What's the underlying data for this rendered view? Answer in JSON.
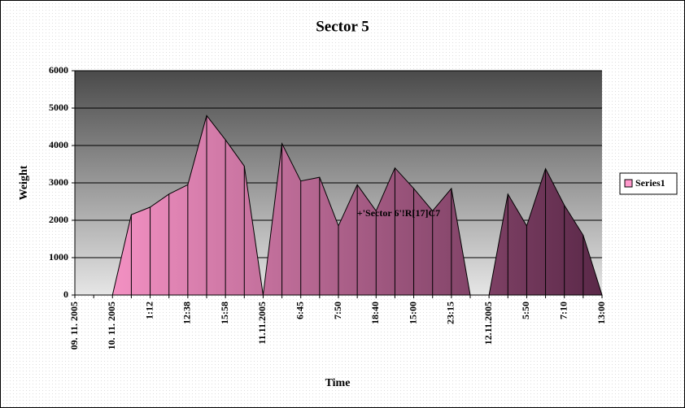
{
  "chart_data": {
    "type": "area",
    "title": "Sector 5",
    "x_label": "Time",
    "y_label": "Weight",
    "categories": [
      "09. 11. 2005",
      null,
      "10. 11. 2005",
      null,
      "1:12",
      null,
      "12:38",
      null,
      "15:58",
      null,
      "11.11.2005",
      null,
      "6:45",
      null,
      "7:50",
      null,
      "18:40",
      null,
      "15:00",
      null,
      "23:15",
      null,
      "12.11.2005",
      null,
      "5:50",
      null,
      "7:10",
      null,
      "13:00"
    ],
    "series": [
      {
        "name": "Series1",
        "color": "#ff99cc",
        "color_end": "#5a2848",
        "values": [
          0,
          0,
          0,
          2150,
          2350,
          2700,
          2950,
          4800,
          4150,
          3450,
          0,
          4050,
          3050,
          3150,
          1850,
          2950,
          2250,
          3400,
          2850,
          2250,
          2850,
          0,
          0,
          2700,
          1850,
          3380,
          2400,
          1600,
          0
        ]
      }
    ],
    "ylim": [
      0,
      6000
    ],
    "yticks": [
      0,
      1000,
      2000,
      3000,
      4000,
      5000,
      6000
    ],
    "grid": true,
    "legend": "right",
    "annotation": "+'Sector 6'!R[17]C7"
  }
}
